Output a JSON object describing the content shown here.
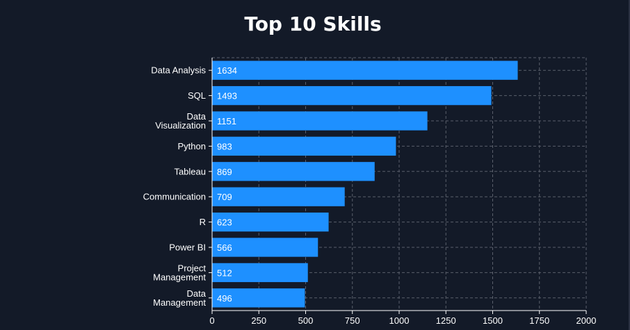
{
  "chart_data": {
    "type": "bar",
    "orientation": "horizontal",
    "title": "Top 10 Skills",
    "xlabel": "",
    "ylabel": "",
    "categories": [
      "Data Analysis",
      "SQL",
      "Data Visualization",
      "Python",
      "Tableau",
      "Communication",
      "R",
      "Power BI",
      "Project Management",
      "Data Management"
    ],
    "category_label_lines": [
      [
        "Data Analysis"
      ],
      [
        "SQL"
      ],
      [
        "Data",
        "Visualization"
      ],
      [
        "Python"
      ],
      [
        "Tableau"
      ],
      [
        "Communication"
      ],
      [
        "R"
      ],
      [
        "Power BI"
      ],
      [
        "Project",
        "Management"
      ],
      [
        "Data",
        "Management"
      ]
    ],
    "values": [
      1634,
      1493,
      1151,
      983,
      869,
      709,
      623,
      566,
      512,
      496
    ],
    "xlim": [
      0,
      2000
    ],
    "xticks": [
      0,
      250,
      500,
      750,
      1000,
      1250,
      1500,
      1750,
      2000
    ],
    "grid": true,
    "data_labels": true,
    "colors": {
      "background": "#131a28",
      "bar": "#1e90ff",
      "grid": "#5a5f6b",
      "axis": "#ffffff",
      "text": "#ffffff"
    }
  }
}
